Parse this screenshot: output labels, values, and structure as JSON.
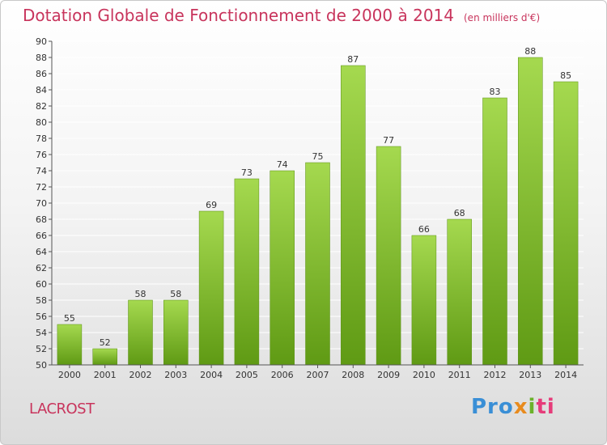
{
  "header": {
    "title": "Dotation Globale de Fonctionnement de 2000 à 2014",
    "subtitle": "(en milliers d'€)"
  },
  "footer": {
    "commune": "LACROST",
    "logo": [
      "Pro",
      "x",
      "i",
      "ti"
    ]
  },
  "colors": {
    "bar_top": "#a5d94f",
    "bar_bottom": "#5f9a14",
    "title": "#c8345c",
    "grid": "#ffffff"
  },
  "chart_data": {
    "type": "bar",
    "title": "Dotation Globale de Fonctionnement de 2000 à 2014",
    "categories": [
      "2000",
      "2001",
      "2002",
      "2003",
      "2004",
      "2005",
      "2006",
      "2007",
      "2008",
      "2009",
      "2010",
      "2011",
      "2012",
      "2013",
      "2014"
    ],
    "values": [
      55,
      52,
      58,
      58,
      69,
      73,
      74,
      75,
      87,
      77,
      66,
      68,
      83,
      88,
      85
    ],
    "ylim": [
      50,
      90
    ],
    "yticks": [
      50,
      52,
      54,
      56,
      58,
      60,
      62,
      64,
      66,
      68,
      70,
      72,
      74,
      76,
      78,
      80,
      82,
      84,
      86,
      88,
      90
    ],
    "grid": true,
    "xlabel": "",
    "ylabel": ""
  }
}
